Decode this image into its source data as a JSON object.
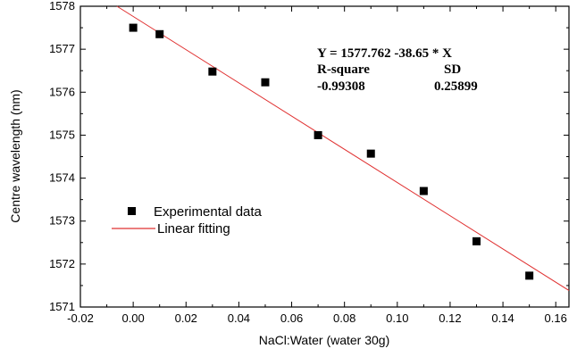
{
  "chart_data": {
    "type": "scatter",
    "xlabel": "NaCl:Water (water 30g)",
    "ylabel": "Centre wavelength (nm)",
    "xlim": [
      -0.02,
      0.165
    ],
    "ylim": [
      1571,
      1578
    ],
    "x_ticks": [
      "-0.02",
      "0.00",
      "0.02",
      "0.04",
      "0.06",
      "0.08",
      "0.10",
      "0.12",
      "0.14",
      "0.16"
    ],
    "y_ticks": [
      "1571",
      "1572",
      "1573",
      "1574",
      "1575",
      "1576",
      "1577",
      "1578"
    ],
    "grid": false,
    "legend_position": "bottom-left",
    "series": [
      {
        "name": "Experimental data",
        "type": "scatter",
        "marker": "square",
        "color": "#000000",
        "x": [
          0.0,
          0.01,
          0.03,
          0.05,
          0.07,
          0.09,
          0.11,
          0.13,
          0.15
        ],
        "y": [
          1577.5,
          1577.35,
          1576.48,
          1576.23,
          1575.0,
          1574.57,
          1573.7,
          1572.53,
          1571.73
        ]
      },
      {
        "name": "Linear fitting",
        "type": "line",
        "color": "#e03030",
        "intercept": 1577.762,
        "slope": -38.65
      }
    ],
    "annotations": {
      "equation": "Y = 1577.762 -38.65 * X",
      "col1_header": "R-square",
      "col2_header": "SD",
      "col1_value": "-0.99308",
      "col2_value": "0.25899"
    }
  }
}
